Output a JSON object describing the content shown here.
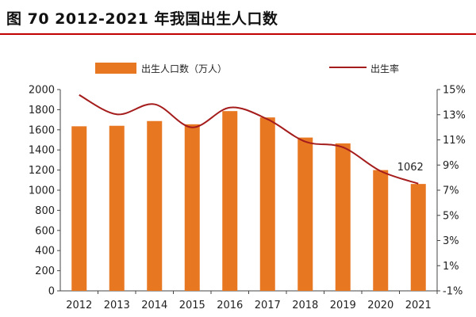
{
  "figure_title": "图 70 2012-2021 年我国出生人口数",
  "colors": {
    "bar": "#e87722",
    "line": "#a51c1c",
    "title_rule": "#c00000"
  },
  "chart_data": {
    "type": "bar",
    "categories": [
      "2012",
      "2013",
      "2014",
      "2015",
      "2016",
      "2017",
      "2018",
      "2019",
      "2020",
      "2021"
    ],
    "series": [
      {
        "name": "出生人口数（万人）",
        "type": "bar",
        "axis": "left",
        "values": [
          1635,
          1640,
          1687,
          1655,
          1786,
          1723,
          1523,
          1465,
          1200,
          1062
        ]
      },
      {
        "name": "出生率",
        "type": "line",
        "axis": "right",
        "values": [
          14.57,
          13.03,
          13.83,
          11.99,
          13.57,
          12.64,
          10.86,
          10.41,
          8.52,
          7.52
        ]
      }
    ],
    "ylim_left": [
      0,
      2000
    ],
    "ylim_right": [
      -1,
      15
    ],
    "y_left_ticks": [
      "0",
      "200",
      "400",
      "600",
      "800",
      "1000",
      "1200",
      "1400",
      "1600",
      "1800",
      "2000"
    ],
    "y_right_ticks": [
      "-1%",
      "1%",
      "3%",
      "5%",
      "7%",
      "9%",
      "11%",
      "13%",
      "15%"
    ],
    "annotation": "1062",
    "legend_position": "top",
    "grid": false
  }
}
